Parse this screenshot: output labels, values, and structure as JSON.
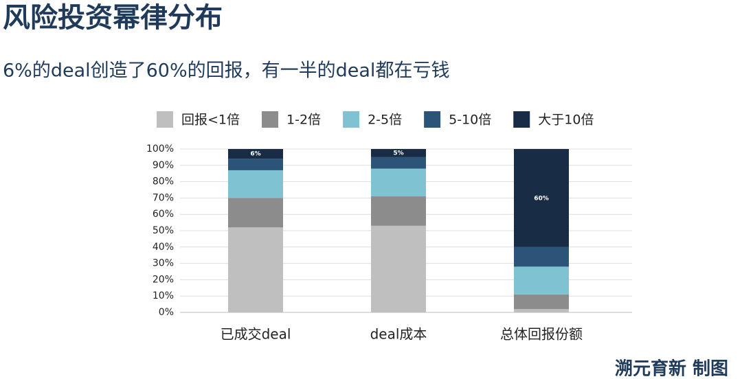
{
  "chart_data": {
    "type": "stacked_bar",
    "title": "风险投资幂律分布",
    "subtitle": "6%的deal创造了60%的回报，有一半的deal都在亏钱",
    "source": "溯元育新 制图",
    "categories": [
      "已成交deal",
      "deal成本",
      "总体回报份额"
    ],
    "series": [
      {
        "name": "回报<1倍",
        "color": "#bfbfbf",
        "values": [
          52,
          53,
          2
        ]
      },
      {
        "name": "1-2倍",
        "color": "#8c8c8c",
        "values": [
          18,
          18,
          9
        ]
      },
      {
        "name": "2-5倍",
        "color": "#7fc3d3",
        "values": [
          17,
          17,
          17
        ]
      },
      {
        "name": "5-10倍",
        "color": "#2c5478",
        "values": [
          7,
          7,
          12
        ]
      },
      {
        "name": "大于10倍",
        "color": "#182c45",
        "values": [
          6,
          5,
          60
        ],
        "value_labels": [
          "6%",
          "5%",
          "60%"
        ]
      }
    ],
    "ylim": [
      0,
      100
    ],
    "yticks": [
      {
        "value": 0,
        "label": "0%"
      },
      {
        "value": 10,
        "label": "10%"
      },
      {
        "value": 20,
        "label": "20%"
      },
      {
        "value": 30,
        "label": "30%"
      },
      {
        "value": 40,
        "label": "40%"
      },
      {
        "value": 50,
        "label": "50%"
      },
      {
        "value": 60,
        "label": "60%"
      },
      {
        "value": 70,
        "label": "70%"
      },
      {
        "value": 80,
        "label": "80%"
      },
      {
        "value": 90,
        "label": "90%"
      },
      {
        "value": 100,
        "label": "100%"
      }
    ],
    "grid": true
  }
}
